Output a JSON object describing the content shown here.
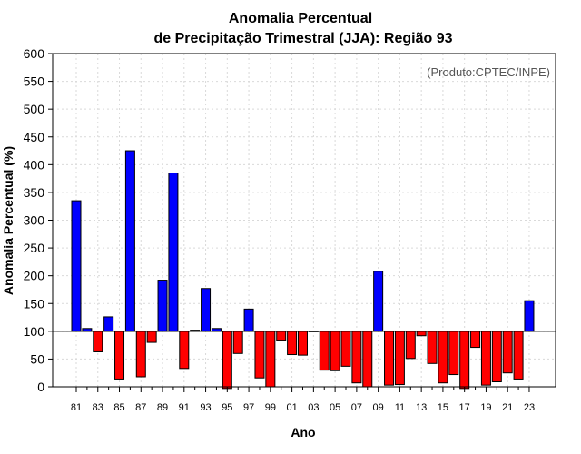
{
  "chart_data": {
    "type": "bar",
    "title": "Anomalia Percentual",
    "subtitle": "de Precipitação Trimestral (JJA): Região 93",
    "credit": "(Produto:CPTEC/INPE)",
    "xlabel": "Ano",
    "ylabel": "Anomalia Percentual (%)",
    "ylim": [
      0,
      600
    ],
    "yticks": [
      0,
      50,
      100,
      150,
      200,
      250,
      300,
      350,
      400,
      450,
      500,
      550,
      600
    ],
    "baseline": 100,
    "grid": true,
    "xtick_labels": [
      "81",
      "83",
      "85",
      "87",
      "89",
      "91",
      "93",
      "95",
      "97",
      "99",
      "01",
      "03",
      "05",
      "07",
      "09",
      "11",
      "13",
      "15",
      "17",
      "19",
      "21",
      "23"
    ],
    "categories": [
      "1981",
      "1982",
      "1983",
      "1984",
      "1985",
      "1986",
      "1987",
      "1988",
      "1989",
      "1990",
      "1991",
      "1992",
      "1993",
      "1994",
      "1995",
      "1996",
      "1997",
      "1998",
      "1999",
      "2000",
      "2001",
      "2002",
      "2003",
      "2004",
      "2005",
      "2006",
      "2007",
      "2008",
      "2009",
      "2010",
      "2011",
      "2012",
      "2013",
      "2014",
      "2015",
      "2016",
      "2017",
      "2018",
      "2019",
      "2020",
      "2021",
      "2022",
      "2023"
    ],
    "values": [
      335,
      105,
      63,
      126,
      14,
      425,
      18,
      80,
      192,
      385,
      33,
      102,
      177,
      105,
      -3,
      60,
      140,
      16,
      0,
      84,
      58,
      57,
      100,
      30,
      29,
      37,
      7,
      0,
      208,
      3,
      4,
      51,
      92,
      42,
      7,
      22,
      -3,
      71,
      3,
      9,
      25,
      14,
      155
    ],
    "colors": {
      "above": "#0000ff",
      "below": "#ff0000",
      "grid": "#d9d9d9"
    }
  }
}
